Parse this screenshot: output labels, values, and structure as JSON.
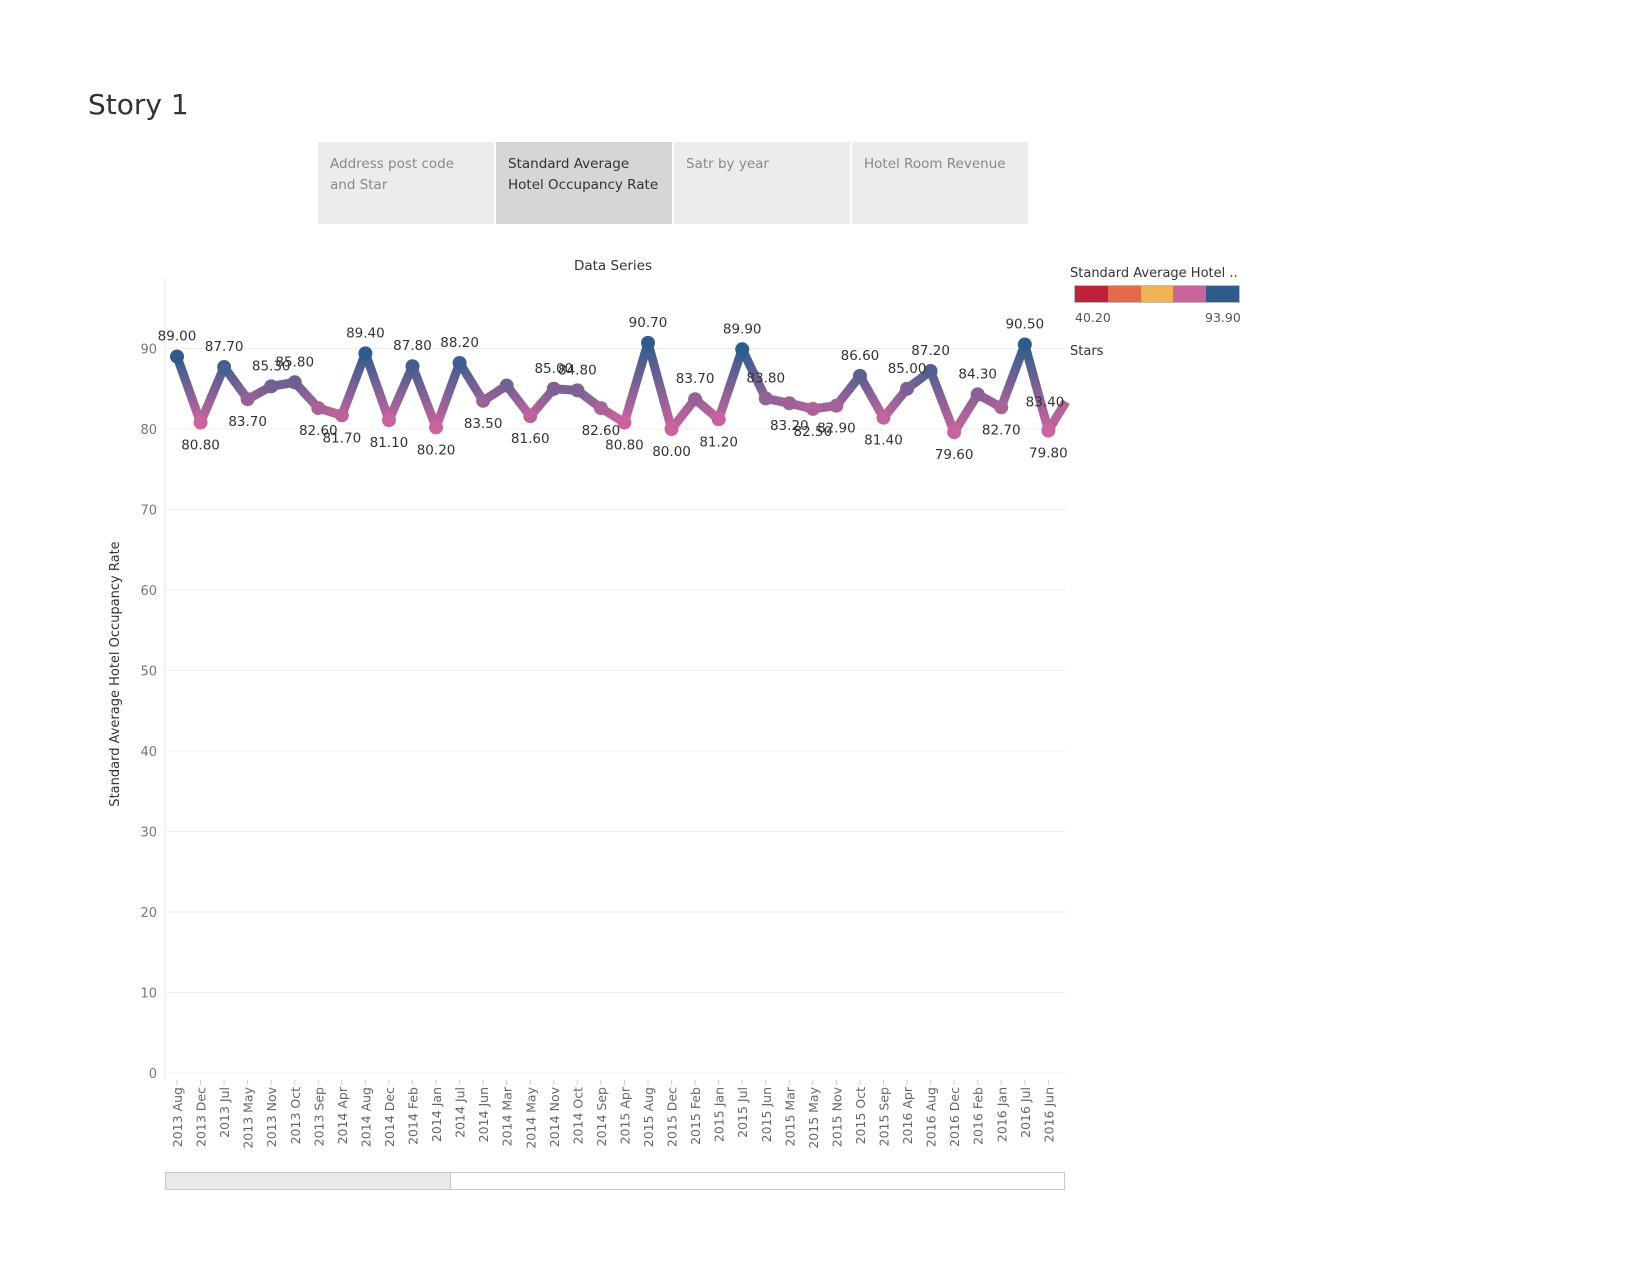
{
  "story": {
    "title": "Story 1"
  },
  "tabs": [
    {
      "label": "Address post code and Star",
      "active": false
    },
    {
      "label": "Standard Average Hotel Occupancy Rate",
      "active": true
    },
    {
      "label": "Satr by year",
      "active": false
    },
    {
      "label": "Hotel Room Revenue",
      "active": false
    }
  ],
  "legend": {
    "title": "Standard Average Hotel ..",
    "min_label": "40.20",
    "max_label": "93.90",
    "colors": [
      "#c0213d",
      "#e5694a",
      "#f1b453",
      "#c9649c",
      "#2e5d8c"
    ],
    "stars_title": "Stars"
  },
  "chart_data": {
    "type": "line",
    "title": "Data Series",
    "ylabel": "Standard Average Hotel Occupancy Rate",
    "xlabel": "",
    "ylim": [
      0,
      90
    ],
    "yticks": [
      0,
      10,
      20,
      30,
      40,
      50,
      60,
      70,
      80,
      90
    ],
    "grid": true,
    "categories": [
      "2013 Aug",
      "2013 Dec",
      "2013 Jul",
      "2013 May",
      "2013 Nov",
      "2013 Oct",
      "2013 Sep",
      "2014 Apr",
      "2014 Aug",
      "2014 Dec",
      "2014 Feb",
      "2014 Jan",
      "2014 Jul",
      "2014 Jun",
      "2014 Mar",
      "2014 May",
      "2014 Nov",
      "2014 Oct",
      "2014 Sep",
      "2015 Apr",
      "2015 Aug",
      "2015 Dec",
      "2015 Feb",
      "2015 Jan",
      "2015 Jul",
      "2015 Jun",
      "2015 Mar",
      "2015 May",
      "2015 Nov",
      "2015 Oct",
      "2015 Sep",
      "2016 Apr",
      "2016 Aug",
      "2016 Dec",
      "2016 Feb",
      "2016 Jan",
      "2016 Jul",
      "2016 Jun"
    ],
    "values": [
      89.0,
      80.8,
      87.7,
      83.7,
      85.3,
      85.8,
      82.6,
      81.7,
      89.4,
      81.1,
      87.8,
      80.2,
      88.2,
      83.5,
      85.4,
      81.6,
      85.0,
      84.8,
      82.6,
      80.8,
      90.7,
      80.0,
      83.7,
      81.2,
      89.9,
      83.8,
      83.2,
      82.5,
      82.9,
      86.6,
      81.4,
      85.0,
      87.2,
      79.6,
      84.3,
      82.7,
      90.5,
      79.8
    ],
    "value_labels": [
      "89.00",
      "80.80",
      "87.70",
      "83.70",
      "85.30",
      "85.80",
      "82.60",
      "81.70",
      "89.40",
      "81.10",
      "87.80",
      "80.20",
      "88.20",
      "83.50",
      "",
      "81.60",
      "85.00",
      "84.80",
      "82.60",
      "80.80",
      "90.70",
      "80.00",
      "83.70",
      "81.20",
      "89.90",
      "83.80",
      "83.20",
      "82.50",
      "82.90",
      "86.60",
      "81.40",
      "85.00",
      "87.20",
      "79.60",
      "84.30",
      "82.70",
      "90.50",
      "79.80"
    ],
    "extra_label": "83.40",
    "color_range": [
      40.2,
      93.9
    ],
    "color_low": "#c9649c",
    "color_high": "#2e5d8c"
  }
}
